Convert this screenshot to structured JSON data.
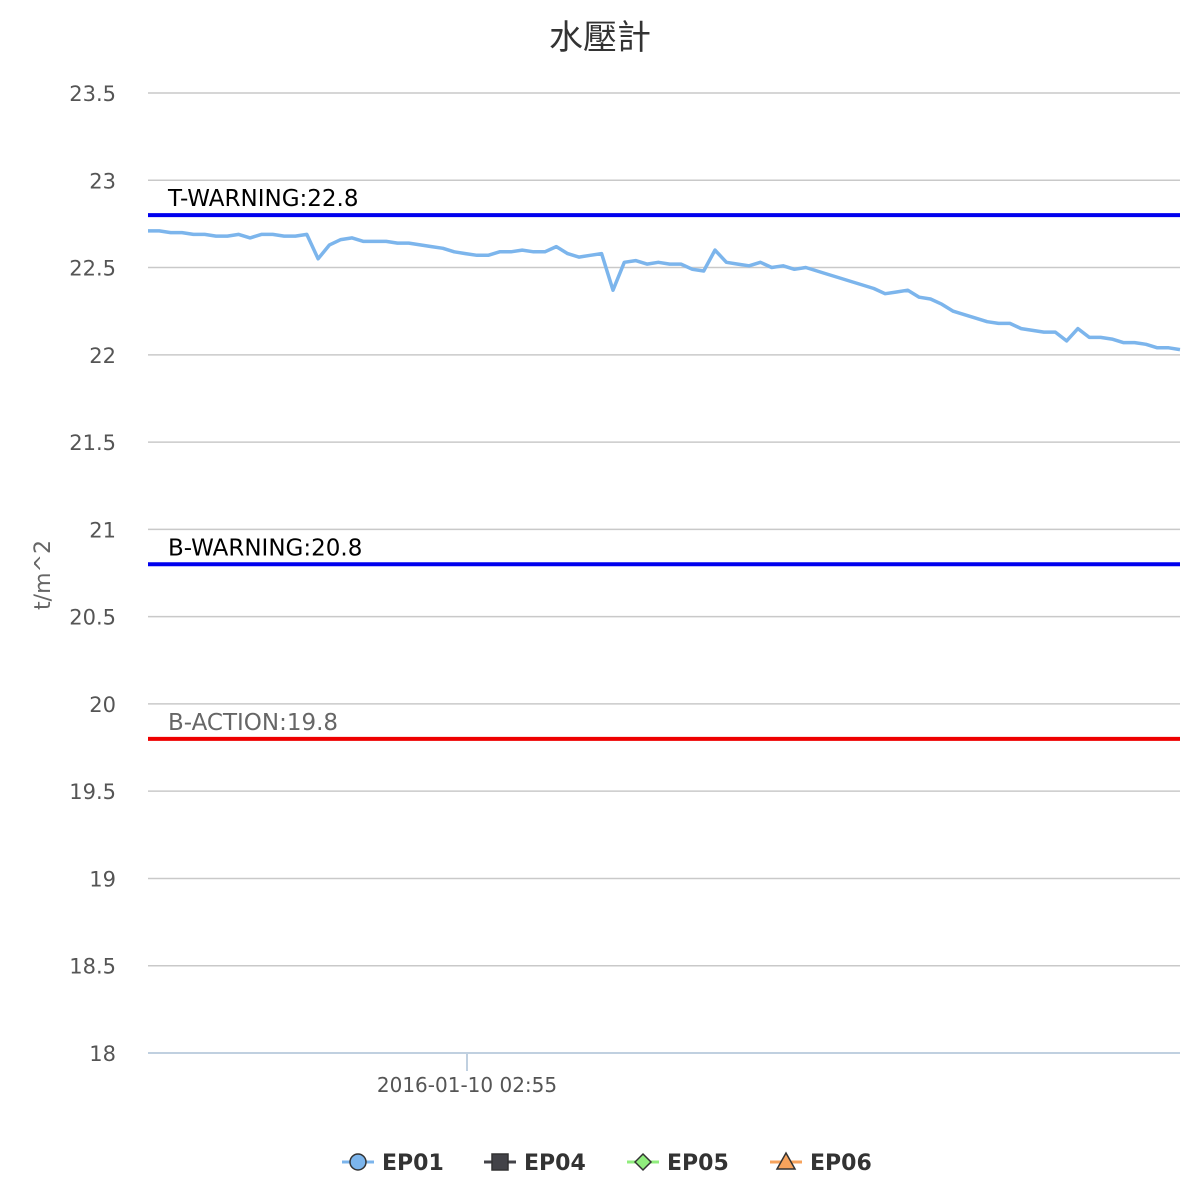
{
  "chart_data": {
    "type": "line",
    "title": "水壓計",
    "ylabel": "t/m^2",
    "xlabel": "",
    "ylim": [
      18,
      23.5
    ],
    "yticks": [
      "23.5",
      "23",
      "22.5",
      "22",
      "21.5",
      "21",
      "20.5",
      "20",
      "19.5",
      "19",
      "18.5",
      "18"
    ],
    "xticks": [
      "2016-01-10 02:55"
    ],
    "grid": true,
    "legend_placement": "bottom-center",
    "plot_lines": [
      {
        "label": "T-WARNING:22.8",
        "value": 22.8,
        "color": "#0000ee",
        "label_color": "#000000"
      },
      {
        "label": "B-WARNING:20.8",
        "value": 20.8,
        "color": "#0000ee",
        "label_color": "#000000"
      },
      {
        "label": "B-ACTION:19.8",
        "value": 19.8,
        "color": "#ee0000",
        "label_color": "#666666"
      }
    ],
    "series": [
      {
        "name": "EP01",
        "color": "#7cb5ec",
        "marker": "circle",
        "values": [
          22.71,
          22.71,
          22.7,
          22.7,
          22.69,
          22.69,
          22.68,
          22.68,
          22.69,
          22.67,
          22.69,
          22.69,
          22.68,
          22.68,
          22.69,
          22.55,
          22.63,
          22.66,
          22.67,
          22.65,
          22.65,
          22.65,
          22.64,
          22.64,
          22.63,
          22.62,
          22.61,
          22.59,
          22.58,
          22.57,
          22.57,
          22.59,
          22.59,
          22.6,
          22.59,
          22.59,
          22.62,
          22.58,
          22.56,
          22.57,
          22.58,
          22.37,
          22.53,
          22.54,
          22.52,
          22.53,
          22.52,
          22.52,
          22.49,
          22.48,
          22.6,
          22.53,
          22.52,
          22.51,
          22.53,
          22.5,
          22.51,
          22.49,
          22.5,
          22.48,
          22.46,
          22.44,
          22.42,
          22.4,
          22.38,
          22.35,
          22.36,
          22.37,
          22.33,
          22.32,
          22.29,
          22.25,
          22.23,
          22.21,
          22.19,
          22.18,
          22.18,
          22.15,
          22.14,
          22.13,
          22.13,
          22.08,
          22.15,
          22.1,
          22.1,
          22.09,
          22.07,
          22.07,
          22.06,
          22.04,
          22.04,
          22.03
        ]
      },
      {
        "name": "EP04",
        "color": "#434348",
        "marker": "square",
        "values": []
      },
      {
        "name": "EP05",
        "color": "#90ed7d",
        "marker": "diamond",
        "values": []
      },
      {
        "name": "EP06",
        "color": "#f7a35c",
        "marker": "triangle",
        "values": []
      }
    ]
  }
}
